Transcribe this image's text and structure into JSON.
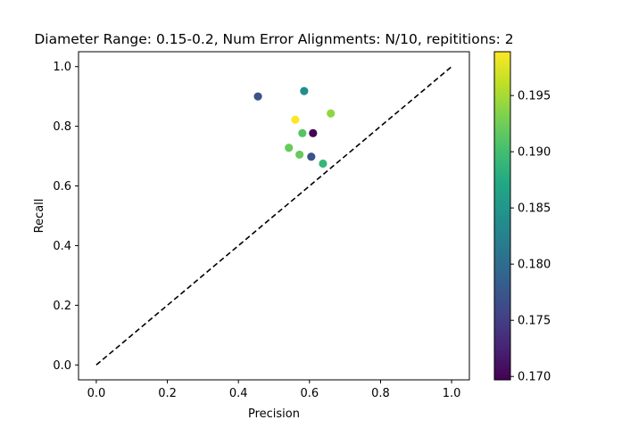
{
  "chart_data": {
    "type": "scatter",
    "title": "Diameter Range: 0.15-0.2, Num Error Alignments: N/10, repititions: 2",
    "xlabel": "Precision",
    "ylabel": "Recall",
    "xlim": [
      -0.05,
      1.05
    ],
    "ylim": [
      -0.05,
      1.05
    ],
    "xticks": [
      "0.0",
      "0.2",
      "0.4",
      "0.6",
      "0.8",
      "1.0"
    ],
    "yticks": [
      "0.0",
      "0.2",
      "0.4",
      "0.6",
      "0.8",
      "1.0"
    ],
    "grid": false,
    "reference_line": {
      "x": [
        0,
        1
      ],
      "y": [
        0,
        1
      ],
      "style": "dashed",
      "color": "#000000"
    },
    "colorbar": {
      "colormap": "viridis",
      "min": 0.1697,
      "max": 0.1989,
      "ticks": [
        "0.170",
        "0.175",
        "0.180",
        "0.185",
        "0.190",
        "0.195"
      ]
    },
    "points": [
      {
        "x": 0.455,
        "y": 0.9,
        "c": 0.177
      },
      {
        "x": 0.585,
        "y": 0.918,
        "c": 0.184
      },
      {
        "x": 0.66,
        "y": 0.843,
        "c": 0.194
      },
      {
        "x": 0.56,
        "y": 0.822,
        "c": 0.199
      },
      {
        "x": 0.58,
        "y": 0.777,
        "c": 0.191
      },
      {
        "x": 0.61,
        "y": 0.777,
        "c": 0.17
      },
      {
        "x": 0.542,
        "y": 0.728,
        "c": 0.192
      },
      {
        "x": 0.572,
        "y": 0.705,
        "c": 0.192
      },
      {
        "x": 0.605,
        "y": 0.698,
        "c": 0.177
      },
      {
        "x": 0.638,
        "y": 0.675,
        "c": 0.189
      }
    ]
  }
}
